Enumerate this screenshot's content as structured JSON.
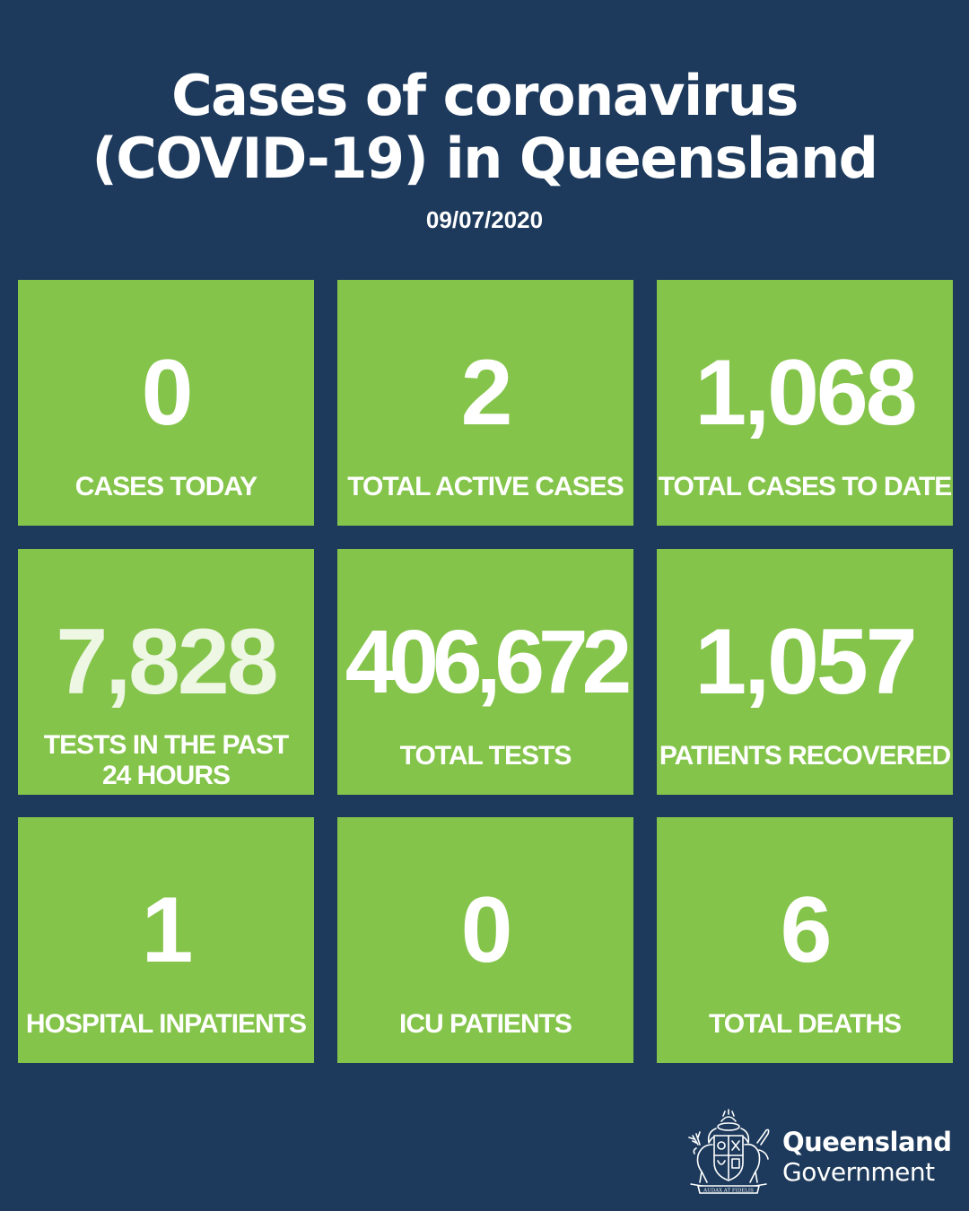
{
  "header": {
    "title_line1": "Cases of coronavirus",
    "title_line2": "(COVID-19) in Queensland",
    "date": "09/07/2020"
  },
  "stats": [
    {
      "value": "0",
      "label": "CASES TODAY"
    },
    {
      "value": "2",
      "label": "TOTAL ACTIVE CASES"
    },
    {
      "value": "1,068",
      "label": "TOTAL CASES TO DATE"
    },
    {
      "value": "7,828",
      "label_line1": "TESTS IN THE PAST",
      "label_line2": "24 HOURS"
    },
    {
      "value": "406,672",
      "label": "TOTAL TESTS"
    },
    {
      "value": "1,057",
      "label": "PATIENTS RECOVERED"
    },
    {
      "value": "1",
      "label": "HOSPITAL INPATIENTS"
    },
    {
      "value": "0",
      "label": "ICU PATIENTS"
    },
    {
      "value": "6",
      "label": "TOTAL DEATHS"
    }
  ],
  "logo": {
    "line1": "Queensland",
    "line2": "Government",
    "motto": "AUDAX AT FIDELIS",
    "icon": "queensland-coat-of-arms"
  },
  "colors": {
    "background": "#1d3a5c",
    "tile": "#84c44a",
    "text": "#ffffff"
  }
}
